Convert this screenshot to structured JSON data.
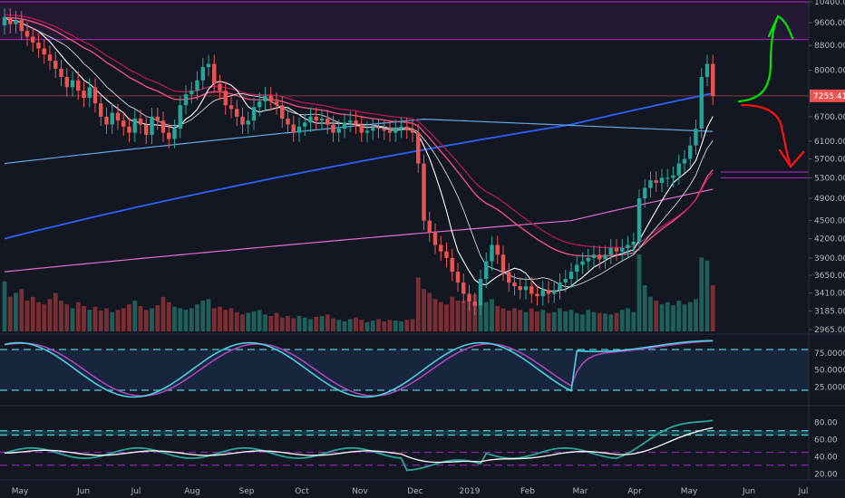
{
  "colors": {
    "background": "#131722",
    "up": "#26a69a",
    "down": "#ef5350",
    "vol_up": "#1f5e5b",
    "vol_down": "#7a2d33",
    "price_line": "#ef5350",
    "ma_white": "#ffffff",
    "ma_pink": "#ef4f7a",
    "ma_purple": "#e86ad0",
    "ma_lightblue": "#5fa9e6",
    "ma_blue": "#2962ff",
    "zone": "#9c27b0",
    "stoch_k": "#4dd0e1",
    "stoch_d": "#ab47bc",
    "rsi": "#26a69a",
    "arrow_up": "#00e400",
    "arrow_down": "#ff1111"
  },
  "price_axis": {
    "ticks": [
      "10400.00",
      "9600.00",
      "8800.00",
      "8000.00",
      "7255.41",
      "6700.00",
      "6100.00",
      "5700.00",
      "5300.00",
      "4900.00",
      "4500.00",
      "4200.00",
      "3900.00",
      "3650.00",
      "3410.00",
      "3185.00",
      "2965.00"
    ],
    "current_price": "7255.41",
    "scale": "log"
  },
  "time_axis": {
    "labels": [
      "May",
      "Jun",
      "Jul",
      "Aug",
      "Sep",
      "Oct",
      "Nov",
      "Dec",
      "2019",
      "Feb",
      "Mar",
      "Apr",
      "May",
      "Jun",
      "Jul"
    ]
  },
  "stoch_axis": {
    "ticks": [
      "75.0000",
      "50.0000",
      "25.0000"
    ]
  },
  "rsi_axis": {
    "ticks": [
      "80.00",
      "60.00",
      "40.00",
      "20.00"
    ]
  },
  "chart_data": [
    {
      "type": "candlestick",
      "title": "",
      "price_range": [
        2900,
        10600
      ],
      "resistance_zones": [
        [
          9000,
          10400
        ]
      ],
      "horizontal_levels": [
        7255.41,
        5420,
        5300
      ],
      "closes": [
        9800,
        9550,
        9700,
        9300,
        9100,
        8900,
        8700,
        8500,
        8300,
        8050,
        7800,
        7500,
        7700,
        7400,
        7200,
        7500,
        7050,
        6700,
        6500,
        6800,
        6600,
        6450,
        6300,
        6650,
        6500,
        6250,
        6700,
        6600,
        6300,
        6150,
        6400,
        7000,
        7300,
        7400,
        7700,
        8100,
        8200,
        7600,
        7400,
        7000,
        6900,
        6700,
        6500,
        6600,
        6950,
        7100,
        7250,
        7100,
        7000,
        6650,
        6500,
        6300,
        6450,
        6550,
        6700,
        6600,
        6650,
        6500,
        6300,
        6400,
        6550,
        6600,
        6500,
        6300,
        6350,
        6420,
        6400,
        6350,
        6300,
        6400,
        6450,
        6380,
        6300,
        5600,
        4500,
        4300,
        4100,
        4000,
        3900,
        3700,
        3550,
        3400,
        3300,
        3250,
        3600,
        3850,
        4100,
        3950,
        3700,
        3550,
        3500,
        3450,
        3500,
        3400,
        3370,
        3450,
        3400,
        3450,
        3550,
        3600,
        3700,
        3800,
        3850,
        3900,
        3950,
        3880,
        3950,
        4050,
        4000,
        4050,
        4100,
        4150,
        4900,
        5100,
        5250,
        5200,
        5300,
        5300,
        5350,
        5600,
        5700,
        6000,
        6400,
        7800,
        8200,
        7255.41
      ],
      "volume_relative": [
        0.65,
        0.45,
        0.5,
        0.55,
        0.4,
        0.45,
        0.38,
        0.35,
        0.42,
        0.5,
        0.4,
        0.35,
        0.3,
        0.38,
        0.33,
        0.28,
        0.32,
        0.27,
        0.3,
        0.25,
        0.28,
        0.3,
        0.35,
        0.4,
        0.33,
        0.28,
        0.3,
        0.34,
        0.45,
        0.38,
        0.32,
        0.3,
        0.28,
        0.3,
        0.35,
        0.4,
        0.42,
        0.3,
        0.32,
        0.28,
        0.3,
        0.25,
        0.22,
        0.24,
        0.26,
        0.28,
        0.22,
        0.2,
        0.24,
        0.18,
        0.2,
        0.17,
        0.2,
        0.18,
        0.16,
        0.19,
        0.2,
        0.22,
        0.17,
        0.15,
        0.13,
        0.16,
        0.18,
        0.15,
        0.12,
        0.14,
        0.16,
        0.13,
        0.15,
        0.14,
        0.13,
        0.15,
        0.16,
        0.7,
        0.55,
        0.5,
        0.42,
        0.38,
        0.35,
        0.45,
        0.4,
        0.4,
        0.38,
        0.48,
        0.35,
        0.38,
        0.42,
        0.33,
        0.3,
        0.27,
        0.3,
        0.28,
        0.25,
        0.3,
        0.26,
        0.28,
        0.24,
        0.25,
        0.3,
        0.26,
        0.28,
        0.24,
        0.22,
        0.28,
        0.25,
        0.24,
        0.23,
        0.22,
        0.24,
        0.28,
        0.3,
        0.25,
        1.0,
        0.6,
        0.45,
        0.4,
        0.35,
        0.38,
        0.34,
        0.4,
        0.35,
        0.38,
        0.42,
        0.96,
        0.92,
        0.6
      ],
      "annotations": [
        "green up arrow toward 9600–10400 zone",
        "red down arrow toward 5300–5420 zone"
      ]
    },
    {
      "type": "line",
      "title": "",
      "name": "",
      "ylim": [
        0,
        100
      ],
      "dashed_levels": [
        80,
        20
      ]
    },
    {
      "type": "line",
      "title": "",
      "name": "",
      "ylim": [
        15,
        95
      ],
      "dashed_levels": [
        70,
        65,
        45,
        30
      ]
    }
  ]
}
